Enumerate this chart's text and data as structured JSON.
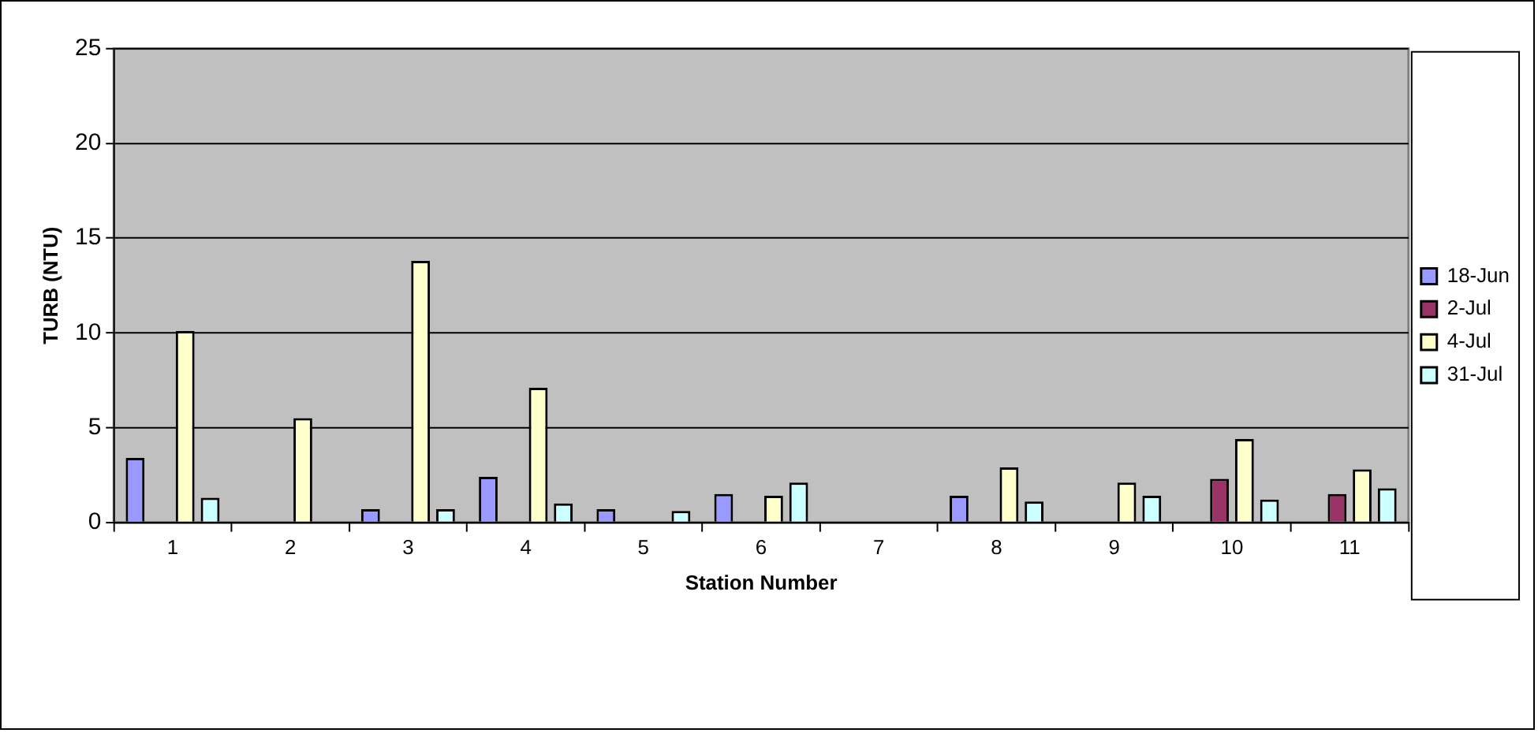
{
  "chart_data": {
    "type": "bar",
    "xlabel": "Station Number",
    "ylabel": "TURB (NTU)",
    "categories": [
      "1",
      "2",
      "3",
      "4",
      "5",
      "6",
      "7",
      "8",
      "9",
      "10",
      "11"
    ],
    "series": [
      {
        "name": "18-Jun",
        "color": "#9999ff",
        "values": [
          3.4,
          null,
          0.7,
          2.4,
          0.7,
          1.5,
          null,
          1.4,
          null,
          null,
          null
        ]
      },
      {
        "name": "2-Jul",
        "color": "#993366",
        "values": [
          null,
          null,
          null,
          null,
          null,
          null,
          null,
          null,
          null,
          2.3,
          1.5
        ]
      },
      {
        "name": "4-Jul",
        "color": "#ffffcc",
        "values": [
          10.1,
          5.5,
          13.8,
          7.1,
          null,
          1.4,
          null,
          2.9,
          2.1,
          4.4,
          2.8
        ]
      },
      {
        "name": "31-Jul",
        "color": "#ccffff",
        "values": [
          1.3,
          null,
          0.7,
          1.0,
          0.6,
          2.1,
          null,
          1.1,
          1.4,
          1.2,
          1.8
        ]
      }
    ],
    "ylim": [
      0,
      25
    ],
    "yticks": [
      0,
      5,
      10,
      15,
      20,
      25
    ],
    "grid": "y",
    "legend": "right"
  }
}
